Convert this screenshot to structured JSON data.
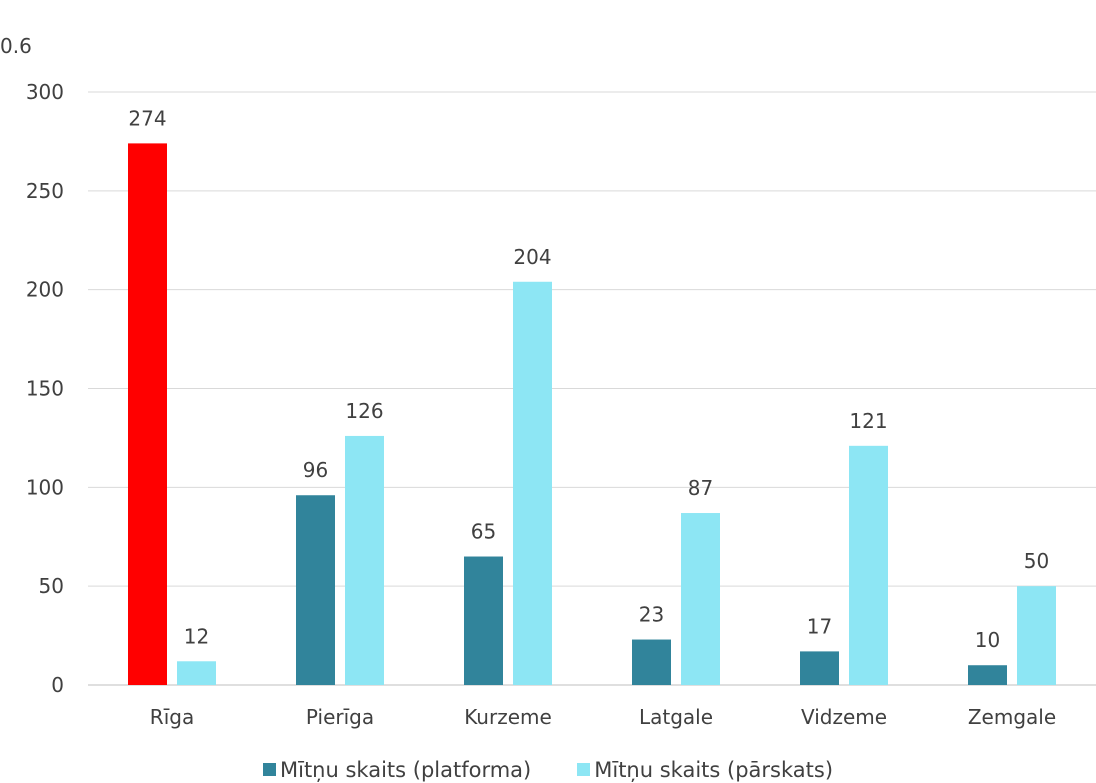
{
  "corner_text": "0.6",
  "chart_data": {
    "type": "bar",
    "title": "",
    "xlabel": "",
    "ylabel": "",
    "categories": [
      "Rīga",
      "Pierīga",
      "Kurzeme",
      "Latgale",
      "Vidzeme",
      "Zemgale"
    ],
    "series": [
      {
        "name": "Mītņu skaits (platforma)",
        "color": "#31849b",
        "highlight": {
          "category": "Rīga",
          "color": "#ff0000"
        },
        "values": [
          274,
          96,
          65,
          23,
          17,
          10
        ]
      },
      {
        "name": "Mītņu skaits (pārskats)",
        "color": "#8de6f4",
        "values": [
          12,
          126,
          204,
          87,
          121,
          50
        ]
      }
    ],
    "ylim": [
      0,
      300
    ],
    "yticks": [
      0,
      50,
      100,
      150,
      200,
      250,
      300
    ],
    "grid": true,
    "data_labels": true,
    "legend_position": "bottom"
  }
}
